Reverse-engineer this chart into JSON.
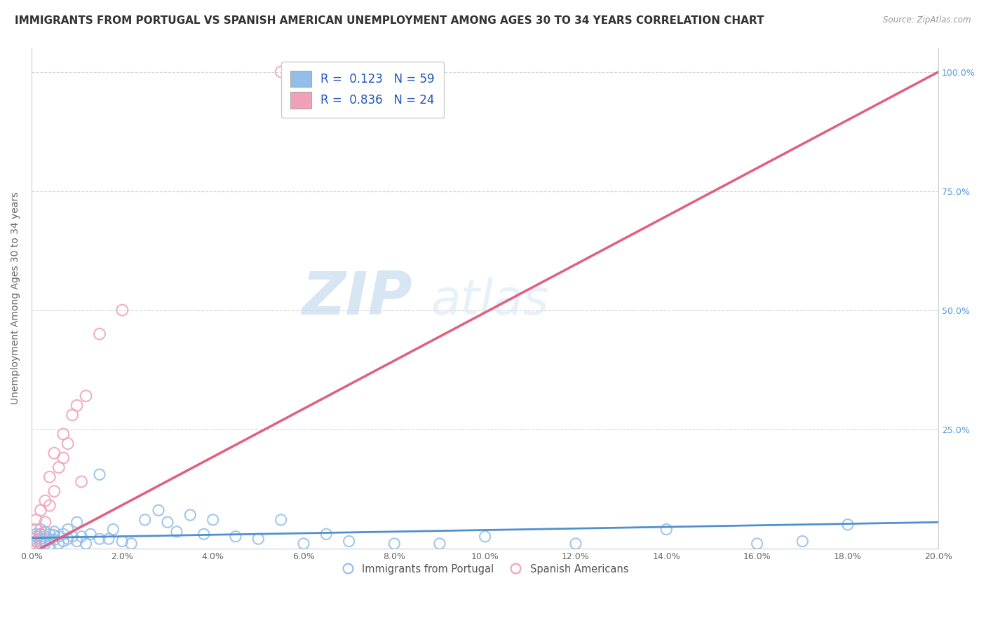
{
  "title": "IMMIGRANTS FROM PORTUGAL VS SPANISH AMERICAN UNEMPLOYMENT AMONG AGES 30 TO 34 YEARS CORRELATION CHART",
  "source": "Source: ZipAtlas.com",
  "ylabel": "Unemployment Among Ages 30 to 34 years",
  "xlim": [
    0.0,
    0.2
  ],
  "ylim": [
    0.0,
    1.05
  ],
  "legend_label1": "Immigrants from Portugal",
  "legend_label2": "Spanish Americans",
  "R1": "0.123",
  "N1": "59",
  "R2": "0.836",
  "N2": "24",
  "blue_color": "#92BEE8",
  "pink_color": "#F0A0B8",
  "line_blue": "#5090D0",
  "line_pink": "#E06080",
  "watermark_zip": "ZIP",
  "watermark_atlas": "atlas",
  "background_color": "#FFFFFF",
  "grid_color": "#CCCCCC",
  "title_fontsize": 11,
  "axis_label_fontsize": 10,
  "tick_fontsize": 9,
  "legend_fontsize": 12,
  "blue_scatter_x": [
    0.0,
    0.0,
    0.001,
    0.001,
    0.001,
    0.001,
    0.002,
    0.002,
    0.002,
    0.002,
    0.003,
    0.003,
    0.003,
    0.003,
    0.004,
    0.004,
    0.004,
    0.005,
    0.005,
    0.005,
    0.006,
    0.006,
    0.007,
    0.007,
    0.008,
    0.008,
    0.009,
    0.01,
    0.01,
    0.011,
    0.012,
    0.013,
    0.015,
    0.015,
    0.017,
    0.018,
    0.02,
    0.022,
    0.025,
    0.028,
    0.03,
    0.032,
    0.035,
    0.038,
    0.04,
    0.045,
    0.05,
    0.055,
    0.06,
    0.065,
    0.07,
    0.08,
    0.09,
    0.1,
    0.12,
    0.14,
    0.16,
    0.17,
    0.18
  ],
  "blue_scatter_y": [
    0.01,
    0.02,
    0.005,
    0.015,
    0.025,
    0.03,
    0.01,
    0.02,
    0.03,
    0.04,
    0.015,
    0.025,
    0.035,
    0.01,
    0.02,
    0.03,
    0.008,
    0.018,
    0.028,
    0.035,
    0.01,
    0.025,
    0.015,
    0.03,
    0.02,
    0.04,
    0.025,
    0.015,
    0.055,
    0.025,
    0.01,
    0.03,
    0.02,
    0.155,
    0.02,
    0.04,
    0.015,
    0.01,
    0.06,
    0.08,
    0.055,
    0.035,
    0.07,
    0.03,
    0.06,
    0.025,
    0.02,
    0.06,
    0.01,
    0.03,
    0.015,
    0.01,
    0.01,
    0.025,
    0.01,
    0.04,
    0.01,
    0.015,
    0.05
  ],
  "pink_scatter_x": [
    0.0,
    0.0,
    0.001,
    0.001,
    0.001,
    0.002,
    0.002,
    0.003,
    0.003,
    0.004,
    0.004,
    0.005,
    0.005,
    0.006,
    0.007,
    0.007,
    0.008,
    0.009,
    0.01,
    0.011,
    0.012,
    0.015,
    0.02,
    0.055
  ],
  "pink_scatter_y": [
    0.01,
    0.02,
    0.015,
    0.04,
    0.06,
    0.03,
    0.08,
    0.055,
    0.1,
    0.09,
    0.15,
    0.12,
    0.2,
    0.17,
    0.19,
    0.24,
    0.22,
    0.28,
    0.3,
    0.14,
    0.32,
    0.45,
    0.5,
    1.0
  ],
  "pink_line_x0": 0.0,
  "pink_line_y0": -0.01,
  "pink_line_x1": 0.2,
  "pink_line_y1": 1.0,
  "blue_line_x0": 0.0,
  "blue_line_y0": 0.022,
  "blue_line_x1": 0.2,
  "blue_line_y1": 0.055
}
